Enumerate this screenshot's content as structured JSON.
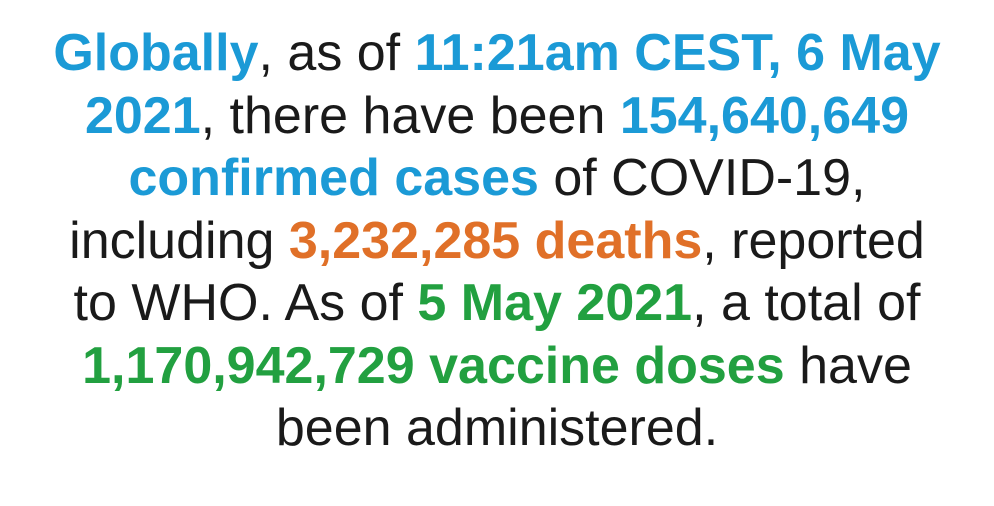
{
  "colors": {
    "blue": "#1b9ad6",
    "orange": "#e07028",
    "green": "#22a040",
    "text": "#1a1a1a"
  },
  "lines": [
    [
      {
        "t": "Globally",
        "s": "blue"
      },
      {
        "t": ", as of ",
        "s": ""
      },
      {
        "t": "11:21am CEST, 6 May",
        "s": "blue"
      }
    ],
    [
      {
        "t": "2021",
        "s": "blue"
      },
      {
        "t": ", there have been ",
        "s": ""
      },
      {
        "t": "154,640,649",
        "s": "blue"
      }
    ],
    [
      {
        "t": "confirmed cases",
        "s": "blue"
      },
      {
        "t": " of COVID-19,",
        "s": ""
      }
    ],
    [
      {
        "t": "including ",
        "s": ""
      },
      {
        "t": "3,232,285 deaths",
        "s": "orange"
      },
      {
        "t": ", reported",
        "s": ""
      }
    ],
    [
      {
        "t": "to WHO. As of ",
        "s": ""
      },
      {
        "t": "5 May 2021",
        "s": "green"
      },
      {
        "t": ", a total of",
        "s": ""
      }
    ],
    [
      {
        "t": "1,170,942,729 vaccine doses",
        "s": "green"
      },
      {
        "t": " have",
        "s": ""
      }
    ],
    [
      {
        "t": "been administered.",
        "s": ""
      }
    ]
  ]
}
